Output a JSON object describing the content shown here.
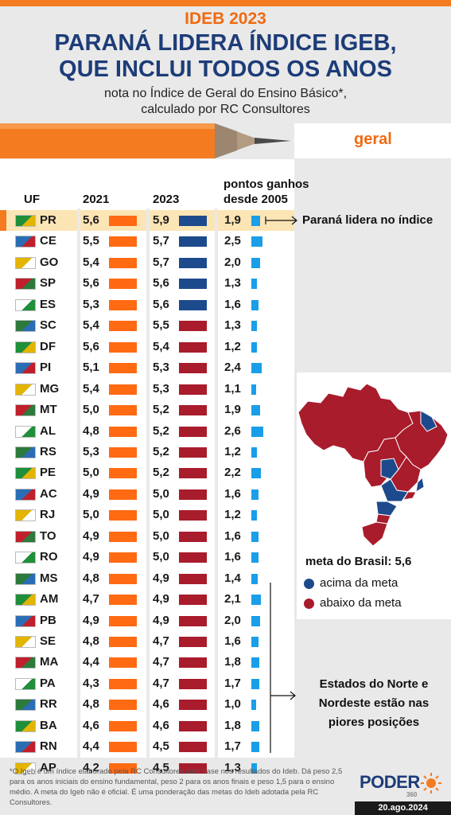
{
  "header": {
    "kicker": "IDEB 2023",
    "title_line1": "PARANÁ LIDERA ÍNDICE IGEB,",
    "title_line2": "QUE INCLUI TODOS OS ANOS",
    "subtitle_line1": "nota no Índice de Geral do Ensino Básico*,",
    "subtitle_line2": "calculado por RC Consultores",
    "tab_label": "geral"
  },
  "columns": {
    "uf": "UF",
    "y2021": "2021",
    "y2023": "2023",
    "gain_line1": "pontos ganhos",
    "gain_line2": "desde 2005"
  },
  "colors": {
    "bar_2021": "#ff6a13",
    "above_goal": "#1d4a8c",
    "below_goal": "#a81c2c",
    "gain_bar": "#1a9ee8",
    "highlight": "#fce5b4",
    "accent": "#f06a10",
    "title": "#1d3c78"
  },
  "chart_data": {
    "type": "table",
    "columns": [
      "UF",
      "2021",
      "2023",
      "pontos ganhos desde 2005"
    ],
    "goal": 5.6,
    "rows": [
      {
        "uf": "PR",
        "y2021": "5,6",
        "y2023": "5,9",
        "gain": "1,9",
        "status": "above",
        "g": 1.9
      },
      {
        "uf": "CE",
        "y2021": "5,5",
        "y2023": "5,7",
        "gain": "2,5",
        "status": "above",
        "g": 2.5
      },
      {
        "uf": "GO",
        "y2021": "5,4",
        "y2023": "5,7",
        "gain": "2,0",
        "status": "above",
        "g": 2.0
      },
      {
        "uf": "SP",
        "y2021": "5,6",
        "y2023": "5,6",
        "gain": "1,3",
        "status": "above",
        "g": 1.3
      },
      {
        "uf": "ES",
        "y2021": "5,3",
        "y2023": "5,6",
        "gain": "1,6",
        "status": "above",
        "g": 1.6
      },
      {
        "uf": "SC",
        "y2021": "5,4",
        "y2023": "5,5",
        "gain": "1,3",
        "status": "below",
        "g": 1.3
      },
      {
        "uf": "DF",
        "y2021": "5,6",
        "y2023": "5,4",
        "gain": "1,2",
        "status": "below",
        "g": 1.2
      },
      {
        "uf": "PI",
        "y2021": "5,1",
        "y2023": "5,3",
        "gain": "2,4",
        "status": "below",
        "g": 2.4
      },
      {
        "uf": "MG",
        "y2021": "5,4",
        "y2023": "5,3",
        "gain": "1,1",
        "status": "below",
        "g": 1.1
      },
      {
        "uf": "MT",
        "y2021": "5,0",
        "y2023": "5,2",
        "gain": "1,9",
        "status": "below",
        "g": 1.9
      },
      {
        "uf": "AL",
        "y2021": "4,8",
        "y2023": "5,2",
        "gain": "2,6",
        "status": "below",
        "g": 2.6
      },
      {
        "uf": "RS",
        "y2021": "5,3",
        "y2023": "5,2",
        "gain": "1,2",
        "status": "below",
        "g": 1.2
      },
      {
        "uf": "PE",
        "y2021": "5,0",
        "y2023": "5,2",
        "gain": "2,2",
        "status": "below",
        "g": 2.2
      },
      {
        "uf": "AC",
        "y2021": "4,9",
        "y2023": "5,0",
        "gain": "1,6",
        "status": "below",
        "g": 1.6
      },
      {
        "uf": "RJ",
        "y2021": "5,0",
        "y2023": "5,0",
        "gain": "1,2",
        "status": "below",
        "g": 1.2
      },
      {
        "uf": "TO",
        "y2021": "4,9",
        "y2023": "5,0",
        "gain": "1,6",
        "status": "below",
        "g": 1.6
      },
      {
        "uf": "RO",
        "y2021": "4,9",
        "y2023": "5,0",
        "gain": "1,6",
        "status": "below",
        "g": 1.6
      },
      {
        "uf": "MS",
        "y2021": "4,8",
        "y2023": "4,9",
        "gain": "1,4",
        "status": "below",
        "g": 1.4
      },
      {
        "uf": "AM",
        "y2021": "4,7",
        "y2023": "4,9",
        "gain": "2,1",
        "status": "below",
        "g": 2.1
      },
      {
        "uf": "PB",
        "y2021": "4,9",
        "y2023": "4,9",
        "gain": "2,0",
        "status": "below",
        "g": 2.0
      },
      {
        "uf": "SE",
        "y2021": "4,8",
        "y2023": "4,7",
        "gain": "1,6",
        "status": "below",
        "g": 1.6
      },
      {
        "uf": "MA",
        "y2021": "4,4",
        "y2023": "4,7",
        "gain": "1,8",
        "status": "below",
        "g": 1.8
      },
      {
        "uf": "PA",
        "y2021": "4,3",
        "y2023": "4,7",
        "gain": "1,7",
        "status": "below",
        "g": 1.7
      },
      {
        "uf": "RR",
        "y2021": "4,8",
        "y2023": "4,6",
        "gain": "1,0",
        "status": "below",
        "g": 1.0
      },
      {
        "uf": "BA",
        "y2021": "4,6",
        "y2023": "4,6",
        "gain": "1,8",
        "status": "below",
        "g": 1.8
      },
      {
        "uf": "RN",
        "y2021": "4,4",
        "y2023": "4,5",
        "gain": "1,7",
        "status": "below",
        "g": 1.7
      },
      {
        "uf": "AP",
        "y2021": "4,2",
        "y2023": "4,5",
        "gain": "1,3",
        "status": "below",
        "g": 1.3
      }
    ]
  },
  "annotations": {
    "pr_note": "Paraná lidera no índice",
    "ne_note_line1": "Estados do Norte e",
    "ne_note_line2": "Nordeste estão nas",
    "ne_note_line3": "piores posições"
  },
  "map": {
    "goal_label": "meta do Brasil: 5,6",
    "legend_above": "acima da meta",
    "legend_below": "abaixo da meta"
  },
  "footer": {
    "footnote": "*O Igeb é um índice elaborado pela RC Consultores com base nos resultados do Ideb. Dá peso 2,5 para os anos iniciais do ensino fundamental, peso 2 para os anos finais e peso 1,5 para o ensino médio. A meta do Igeb não é oficial. É uma ponderação das metas do Ideb adotada pela RC Consultores.",
    "logo": "PODER",
    "logo_sub": "360",
    "date": "20.ago.2024"
  }
}
